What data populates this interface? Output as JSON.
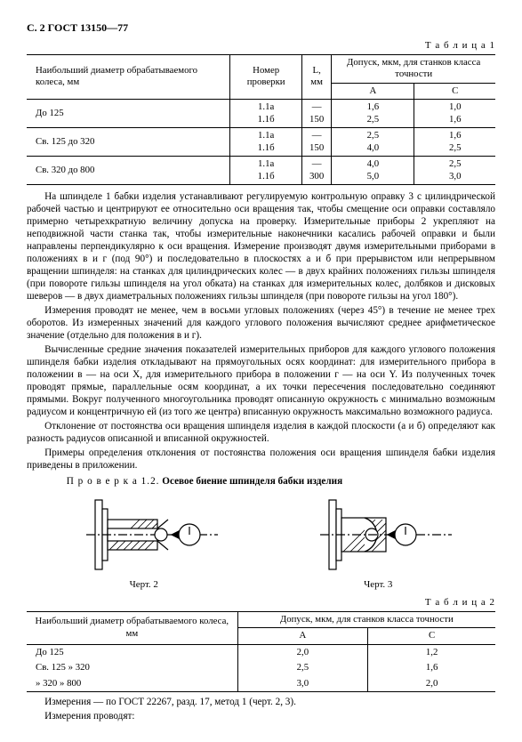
{
  "header": "С. 2 ГОСТ 13150—77",
  "table1": {
    "caption": "Т а б л и ц а  1",
    "head": {
      "c1": "Наибольший диаметр обрабатываемого колеса, мм",
      "c2": "Номер проверки",
      "c3": "L, мм",
      "c4": "Допуск, мкм, для станков класса точности",
      "a": "А",
      "c": "С"
    },
    "rows": [
      {
        "d": "До 125",
        "n1": "1.1а",
        "n2": "1.1б",
        "l1": "—",
        "l2": "150",
        "a1": "1,6",
        "a2": "2,5",
        "c1": "1,0",
        "c2": "1,6"
      },
      {
        "d": "Св. 125 до 320",
        "n1": "1.1а",
        "n2": "1.1б",
        "l1": "—",
        "l2": "150",
        "a1": "2,5",
        "a2": "4,0",
        "c1": "1,6",
        "c2": "2,5"
      },
      {
        "d": "Св. 320 до 800",
        "n1": "1.1а",
        "n2": "1.1б",
        "l1": "—",
        "l2": "300",
        "a1": "4,0",
        "a2": "5,0",
        "c1": "2,5",
        "c2": "3,0"
      }
    ]
  },
  "para1": "На шпинделе 1 бабки изделия устанавливают регулируемую контрольную оправку 3 с цилиндрической рабочей частью и центрируют ее относительно оси вращения так, чтобы смещение оси оправки составляло примерно четырехкратную величину допуска на проверку. Измерительные приборы 2 укрепляют на неподвижной части станка так, чтобы измерительные наконечники касались рабочей оправки и были направлены перпендикулярно к оси вращения. Измерение производят двумя измерительными приборами в положениях в и г (под 90°) и последовательно в плоскостях а и б при прерывистом или непрерывном вращении шпинделя: на станках для цилиндрических колес — в двух крайних положениях гильзы шпинделя (при повороте гильзы шпинделя на угол обката) на станках для измерительных колес, долбяков и дисковых шеверов — в двух диаметральных положениях гильзы шпинделя (при повороте гильзы на угол 180°).",
  "para2": "Измерения проводят не менее, чем в восьми угловых положениях (через 45°) в течение не менее трех оборотов. Из измеренных значений для каждого углового положения вычисляют среднее арифметическое значение (отдельно для положения в и г).",
  "para3": "Вычисленные средние значения показателей измерительных приборов для каждого углового положения шпинделя бабки изделия откладывают на прямоугольных осях координат: для измерительного прибора в положении в — на оси X, для измерительного прибора в положении г — на оси Y. Из полученных точек проводят прямые, параллельные осям координат, а их точки пересечения последовательно соединяют прямыми. Вокруг полученного многоугольника проводят описанную окружность с минимально возможным радиусом и концентричную ей (из того же центра) вписанную окружность максимально возможного радиуса.",
  "para4": "Отклонение от постоянства оси вращения шпинделя изделия в каждой плоскости (а и б) определяют как разность радиусов описанной и вписанной окружностей.",
  "para5": "Примеры определения отклонения от постоянства положения оси вращения шпинделя бабки изделия приведены в приложении.",
  "check": {
    "pre": "П р о в е р к а  1.2.",
    "title": " Осевое биение шпинделя бабки изделия"
  },
  "fig2": "Черт. 2",
  "fig3": "Черт. 3",
  "table2": {
    "caption": "Т а б л и ц а  2",
    "head": {
      "c1": "Наибольший диаметр обрабатываемого колеса, мм",
      "c2": "Допуск, мкм, для станков класса точности",
      "a": "А",
      "c": "С"
    },
    "rows": [
      {
        "d": "До 125",
        "a": "2,0",
        "c": "1,2"
      },
      {
        "d": "Св. 125  »  320",
        "a": "2,5",
        "c": "1,6"
      },
      {
        "d": "»  320  »  800",
        "a": "3,0",
        "c": "2,0"
      }
    ]
  },
  "foot1": "Измерения — по ГОСТ 22267, разд. 17, метод 1 (черт. 2, 3).",
  "foot2": "Измерения проводят:"
}
